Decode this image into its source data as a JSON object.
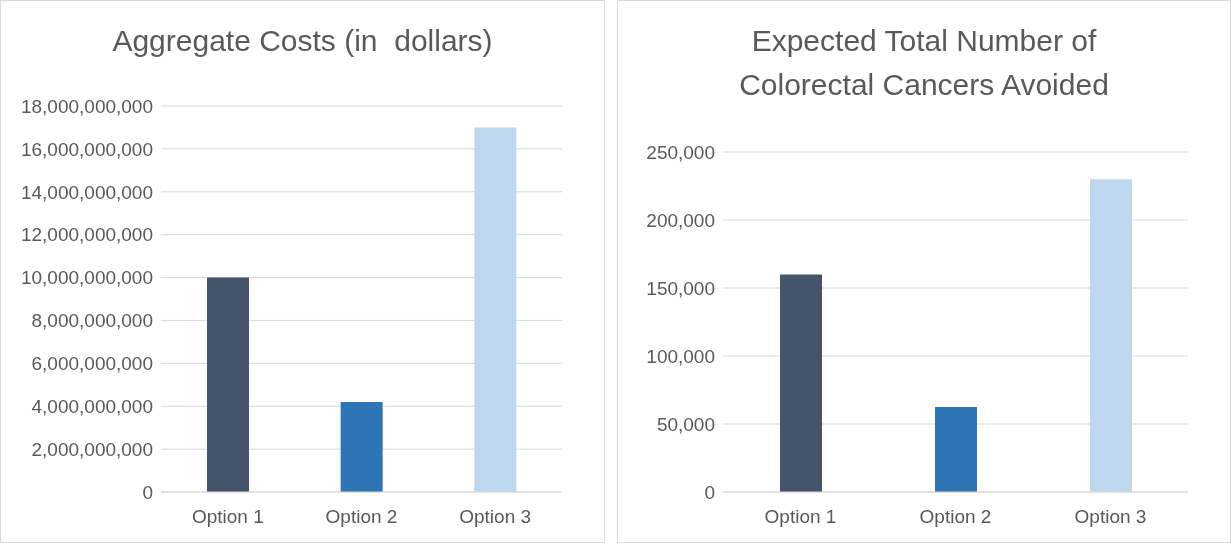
{
  "chart_data": [
    {
      "type": "bar",
      "title": "Aggregate Costs (in  dollars)",
      "categories": [
        "Option 1",
        "Option 2",
        "Option 3"
      ],
      "values": [
        10000000000,
        4200000000,
        17000000000
      ],
      "colors": [
        "#44546a",
        "#2e75b6",
        "#bdd7ee"
      ],
      "ylim": [
        0,
        18000000000
      ],
      "yticks": [
        0,
        {
          "value": 2000000000,
          "label": "2,000,000,000"
        },
        {
          "value": 4000000000,
          "label": "4,000,000,000"
        },
        {
          "value": 6000000000,
          "label": "6,000,000,000"
        },
        {
          "value": 8000000000,
          "label": "8,000,000,000"
        },
        {
          "value": 10000000000,
          "label": "10,000,000,000"
        },
        {
          "value": 12000000000,
          "label": "12,000,000,000"
        },
        {
          "value": 14000000000,
          "label": "14,000,000,000"
        },
        {
          "value": 16000000000,
          "label": "16,000,000,000"
        },
        {
          "value": 18000000000,
          "label": "18,000,000,000"
        }
      ],
      "grid": "y"
    },
    {
      "type": "bar",
      "title": "Expected Total Number of Colorectal Cancers Avoided",
      "categories": [
        "Option 1",
        "Option 2",
        "Option 3"
      ],
      "values": [
        160000,
        62500,
        230000
      ],
      "colors": [
        "#44546a",
        "#2e75b6",
        "#bdd7ee"
      ],
      "ylim": [
        0,
        250000
      ],
      "yticks": [
        0,
        {
          "value": 50000,
          "label": "50,000"
        },
        {
          "value": 100000,
          "label": "100,000"
        },
        {
          "value": 150000,
          "label": "150,000"
        },
        {
          "value": 200000,
          "label": "200,000"
        },
        {
          "value": 250000,
          "label": "250,000"
        }
      ],
      "grid": "y"
    }
  ]
}
